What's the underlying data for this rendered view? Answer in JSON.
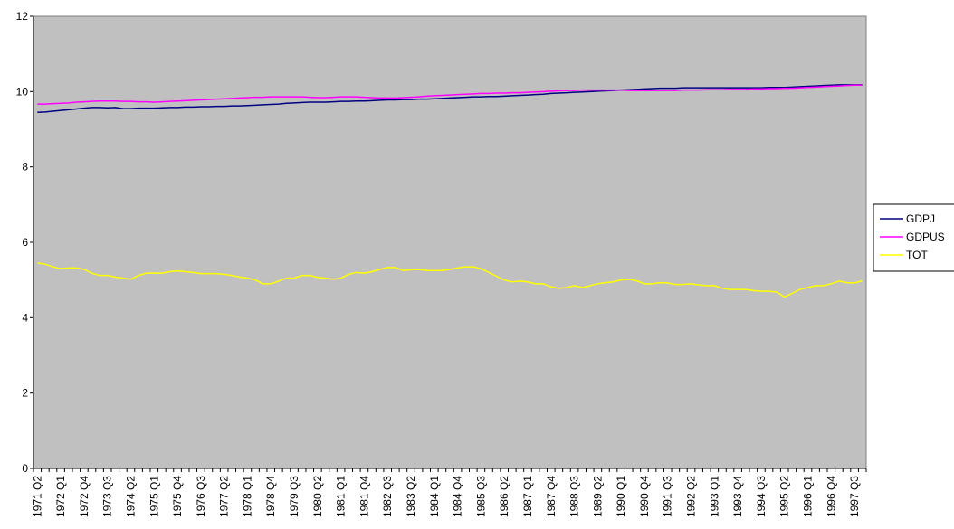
{
  "chart_data": {
    "type": "line",
    "title": "",
    "xlabel": "",
    "ylabel": "",
    "ylim": [
      0,
      12
    ],
    "y_ticks": [
      "0",
      "2",
      "4",
      "6",
      "8",
      "10",
      "12"
    ],
    "x": [
      "1971 Q2",
      "1971 Q3",
      "1971 Q4",
      "1972 Q1",
      "1972 Q2",
      "1972 Q3",
      "1972 Q4",
      "1973 Q1",
      "1973 Q2",
      "1973 Q3",
      "1973 Q4",
      "1974 Q1",
      "1974 Q2",
      "1974 Q3",
      "1974 Q4",
      "1975 Q1",
      "1975 Q2",
      "1975 Q3",
      "1975 Q4",
      "1976 Q1",
      "1976 Q2",
      "1976 Q3",
      "1976 Q4",
      "1977 Q1",
      "1977 Q2",
      "1977 Q3",
      "1977 Q4",
      "1978 Q1",
      "1978 Q2",
      "1978 Q3",
      "1978 Q4",
      "1979 Q1",
      "1979 Q2",
      "1979 Q3",
      "1979 Q4",
      "1980 Q1",
      "1980 Q2",
      "1980 Q3",
      "1980 Q4",
      "1981 Q1",
      "1981 Q2",
      "1981 Q3",
      "1981 Q4",
      "1982 Q1",
      "1982 Q2",
      "1982 Q3",
      "1982 Q4",
      "1983 Q1",
      "1983 Q2",
      "1983 Q3",
      "1983 Q4",
      "1984 Q1",
      "1984 Q2",
      "1984 Q3",
      "1984 Q4",
      "1985 Q1",
      "1985 Q2",
      "1985 Q3",
      "1985 Q4",
      "1986 Q1",
      "1986 Q2",
      "1986 Q3",
      "1986 Q4",
      "1987 Q1",
      "1987 Q2",
      "1987 Q3",
      "1987 Q4",
      "1988 Q1",
      "1988 Q2",
      "1988 Q3",
      "1988 Q4",
      "1989 Q1",
      "1989 Q2",
      "1989 Q3",
      "1989 Q4",
      "1990 Q1",
      "1990 Q2",
      "1990 Q3",
      "1990 Q4",
      "1991 Q1",
      "1991 Q2",
      "1991 Q3",
      "1991 Q4",
      "1992 Q1",
      "1992 Q2",
      "1992 Q3",
      "1992 Q4",
      "1993 Q1",
      "1993 Q2",
      "1993 Q3",
      "1993 Q4",
      "1994 Q1",
      "1994 Q2",
      "1994 Q3",
      "1994 Q4",
      "1995 Q1",
      "1995 Q2",
      "1995 Q3",
      "1995 Q4",
      "1996 Q1",
      "1996 Q2",
      "1996 Q3",
      "1996 Q4",
      "1997 Q1",
      "1997 Q2",
      "1997 Q3",
      "1997 Q4"
    ],
    "x_tick_labels": [
      "1971 Q2",
      "1972 Q1",
      "1972 Q4",
      "1973 Q3",
      "1974 Q2",
      "1975 Q1",
      "1975 Q4",
      "1976 Q3",
      "1977 Q2",
      "1978 Q1",
      "1978 Q4",
      "1979 Q3",
      "1980 Q2",
      "1981 Q1",
      "1981 Q4",
      "1982 Q3",
      "1983 Q2",
      "1984 Q1",
      "1984 Q4",
      "1985 Q3",
      "1986 Q2",
      "1987 Q1",
      "1987 Q4",
      "1988 Q3",
      "1989 Q2",
      "1990 Q1",
      "1990 Q4",
      "1991 Q3",
      "1992 Q2",
      "1993 Q1",
      "1993 Q4",
      "1994 Q3",
      "1995 Q2",
      "1996 Q1",
      "1996 Q4",
      "1997 Q3"
    ],
    "series": [
      {
        "name": "GDPJ",
        "color": "#000080",
        "values": [
          9.45,
          9.46,
          9.48,
          9.5,
          9.52,
          9.54,
          9.56,
          9.58,
          9.58,
          9.57,
          9.58,
          9.55,
          9.55,
          9.56,
          9.56,
          9.56,
          9.57,
          9.58,
          9.58,
          9.59,
          9.59,
          9.6,
          9.6,
          9.61,
          9.61,
          9.62,
          9.62,
          9.63,
          9.64,
          9.65,
          9.66,
          9.67,
          9.69,
          9.7,
          9.71,
          9.72,
          9.72,
          9.72,
          9.73,
          9.74,
          9.74,
          9.75,
          9.75,
          9.76,
          9.77,
          9.78,
          9.78,
          9.79,
          9.79,
          9.8,
          9.8,
          9.81,
          9.82,
          9.83,
          9.84,
          9.85,
          9.86,
          9.86,
          9.87,
          9.87,
          9.88,
          9.89,
          9.9,
          9.91,
          9.92,
          9.93,
          9.95,
          9.96,
          9.97,
          9.98,
          9.99,
          10.0,
          10.01,
          10.02,
          10.03,
          10.04,
          10.05,
          10.06,
          10.07,
          10.08,
          10.09,
          10.09,
          10.09,
          10.1,
          10.1,
          10.1,
          10.1,
          10.1,
          10.1,
          10.1,
          10.1,
          10.1,
          10.1,
          10.1,
          10.11,
          10.11,
          10.11,
          10.12,
          10.13,
          10.14,
          10.15,
          10.16,
          10.17,
          10.18,
          10.18,
          10.18,
          10.18
        ]
      },
      {
        "name": "GDPUS",
        "color": "#ff00ff",
        "values": [
          9.67,
          9.67,
          9.68,
          9.69,
          9.7,
          9.72,
          9.73,
          9.74,
          9.75,
          9.75,
          9.75,
          9.74,
          9.74,
          9.73,
          9.73,
          9.72,
          9.73,
          9.74,
          9.75,
          9.76,
          9.77,
          9.78,
          9.79,
          9.8,
          9.81,
          9.82,
          9.83,
          9.84,
          9.85,
          9.85,
          9.86,
          9.86,
          9.86,
          9.86,
          9.86,
          9.85,
          9.84,
          9.84,
          9.85,
          9.86,
          9.86,
          9.86,
          9.85,
          9.84,
          9.83,
          9.83,
          9.83,
          9.84,
          9.85,
          9.86,
          9.88,
          9.89,
          9.9,
          9.91,
          9.92,
          9.93,
          9.94,
          9.95,
          9.95,
          9.96,
          9.96,
          9.97,
          9.97,
          9.98,
          9.99,
          10.0,
          10.01,
          10.02,
          10.03,
          10.03,
          10.04,
          10.04,
          10.04,
          10.04,
          10.04,
          10.04,
          10.03,
          10.03,
          10.03,
          10.03,
          10.03,
          10.03,
          10.03,
          10.04,
          10.04,
          10.04,
          10.05,
          10.05,
          10.05,
          10.06,
          10.06,
          10.06,
          10.07,
          10.07,
          10.08,
          10.08,
          10.09,
          10.09,
          10.1,
          10.11,
          10.12,
          10.13,
          10.14,
          10.15,
          10.16,
          10.17,
          10.17
        ]
      },
      {
        "name": "TOT",
        "color": "#ffff00",
        "values": [
          5.45,
          5.42,
          5.35,
          5.3,
          5.32,
          5.32,
          5.28,
          5.18,
          5.12,
          5.12,
          5.08,
          5.05,
          5.02,
          5.12,
          5.18,
          5.18,
          5.18,
          5.22,
          5.24,
          5.22,
          5.2,
          5.17,
          5.17,
          5.17,
          5.15,
          5.12,
          5.08,
          5.05,
          5.0,
          4.9,
          4.9,
          4.97,
          5.05,
          5.05,
          5.12,
          5.12,
          5.07,
          5.05,
          5.02,
          5.05,
          5.15,
          5.2,
          5.18,
          5.22,
          5.28,
          5.33,
          5.33,
          5.25,
          5.27,
          5.28,
          5.25,
          5.25,
          5.25,
          5.28,
          5.32,
          5.35,
          5.35,
          5.3,
          5.2,
          5.1,
          5.0,
          4.95,
          4.97,
          4.95,
          4.9,
          4.9,
          4.82,
          4.78,
          4.8,
          4.85,
          4.8,
          4.85,
          4.9,
          4.93,
          4.95,
          5.0,
          5.02,
          4.98,
          4.9,
          4.9,
          4.93,
          4.92,
          4.88,
          4.88,
          4.9,
          4.87,
          4.85,
          4.85,
          4.78,
          4.75,
          4.75,
          4.75,
          4.72,
          4.7,
          4.7,
          4.68,
          4.55,
          4.65,
          4.75,
          4.8,
          4.85,
          4.85,
          4.9,
          4.97,
          4.93,
          4.92,
          4.98
        ]
      }
    ],
    "legend_position": "right",
    "grid": false,
    "plot_background": "#c0c0c0"
  }
}
